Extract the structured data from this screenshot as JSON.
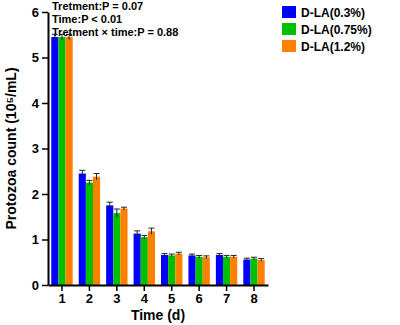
{
  "chart_data": {
    "type": "bar",
    "x_label": "Time (d)",
    "y_label": "Protozoa count (10⁵/mL)",
    "annotations": [
      "Tretment:P = 0.07",
      "Time:P < 0.01",
      "Tretment × time:P = 0.88"
    ],
    "categories": [
      "1",
      "2",
      "3",
      "4",
      "5",
      "6",
      "7",
      "8"
    ],
    "series": [
      {
        "name": "D-LA(0.3%)",
        "color": "#0000ff",
        "values": [
          5.45,
          2.45,
          1.75,
          1.13,
          0.66,
          0.65,
          0.66,
          0.56
        ],
        "errors": [
          0.06,
          0.07,
          0.07,
          0.06,
          0.03,
          0.03,
          0.03,
          0.03
        ]
      },
      {
        "name": "D-LA(0.75%)",
        "color": "#00c000",
        "values": [
          5.45,
          2.25,
          1.58,
          1.05,
          0.65,
          0.62,
          0.62,
          0.58
        ],
        "errors": [
          0.06,
          0.05,
          0.09,
          0.04,
          0.03,
          0.03,
          0.03,
          0.03
        ]
      },
      {
        "name": "D-LA(1.2%)",
        "color": "#ff8000",
        "values": [
          5.45,
          2.38,
          1.68,
          1.18,
          0.69,
          0.61,
          0.62,
          0.55
        ],
        "errors": [
          0.06,
          0.07,
          0.03,
          0.07,
          0.03,
          0.03,
          0.03,
          0.03
        ]
      }
    ],
    "ylim": [
      0,
      6
    ],
    "yticks": [
      0,
      1,
      2,
      3,
      4,
      5,
      6
    ],
    "legend": "top right"
  }
}
